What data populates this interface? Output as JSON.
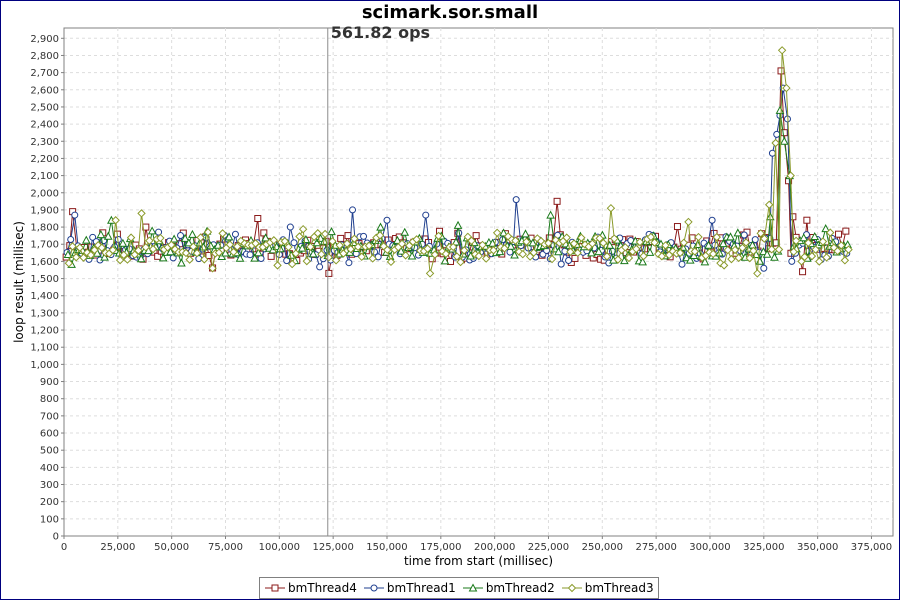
{
  "chart_data": {
    "type": "line",
    "title": "scimark.sor.small",
    "xlabel": "time from start (millisec)",
    "ylabel": "loop result (millisec)",
    "xlim": [
      0,
      385000
    ],
    "ylim": [
      0,
      2960
    ],
    "x_ticks": [
      0,
      25000,
      50000,
      75000,
      100000,
      125000,
      150000,
      175000,
      200000,
      225000,
      250000,
      275000,
      300000,
      325000,
      350000,
      375000
    ],
    "x_tick_labels": [
      "0",
      "25,000",
      "50,000",
      "75,000",
      "100,000",
      "125,000",
      "150,000",
      "175,000",
      "200,000",
      "225,000",
      "250,000",
      "275,000",
      "300,000",
      "325,000",
      "350,000",
      "375,000"
    ],
    "y_ticks": [
      0,
      100,
      200,
      300,
      400,
      500,
      600,
      700,
      800,
      900,
      1000,
      1100,
      1200,
      1300,
      1400,
      1500,
      1600,
      1700,
      1800,
      1900,
      2000,
      2100,
      2200,
      2300,
      2400,
      2500,
      2600,
      2700,
      2800,
      2900
    ],
    "y_tick_labels": [
      "0",
      "100",
      "200",
      "300",
      "400",
      "500",
      "600",
      "700",
      "800",
      "900",
      "1,000",
      "1,100",
      "1,200",
      "1,300",
      "1,400",
      "1,500",
      "1,600",
      "1,700",
      "1,800",
      "1,900",
      "2,000",
      "2,100",
      "2,200",
      "2,300",
      "2,400",
      "2,500",
      "2,600",
      "2,700",
      "2,800",
      "2,900"
    ],
    "grid": true,
    "legend_position": "bottom",
    "marker_line": {
      "x": 122500,
      "label": "561.82 ops"
    },
    "sampling": {
      "x_start": 1000,
      "x_step": 1700,
      "count": 214,
      "baseline": 1680,
      "noise": 75
    },
    "series": [
      {
        "name": "bmThread4",
        "color": "#8b1a1a",
        "marker": "square",
        "seed": 11,
        "spikes": [
          [
            4000,
            1890
          ],
          [
            38000,
            1800
          ],
          [
            90000,
            1850
          ],
          [
            123000,
            1530
          ],
          [
            229000,
            1950
          ],
          [
            333000,
            2710
          ],
          [
            334500,
            2350
          ],
          [
            336500,
            2070
          ],
          [
            338500,
            1860
          ],
          [
            340000,
            1740
          ],
          [
            343000,
            1540
          ],
          [
            345000,
            1840
          ]
        ]
      },
      {
        "name": "bmThread1",
        "color": "#1f3f8f",
        "marker": "circle",
        "seed": 23,
        "spikes": [
          [
            5000,
            1870
          ],
          [
            134000,
            1900
          ],
          [
            150000,
            1840
          ],
          [
            168000,
            1870
          ],
          [
            210000,
            1960
          ],
          [
            301000,
            1840
          ],
          [
            325000,
            1560
          ],
          [
            329000,
            2230
          ],
          [
            331000,
            2340
          ],
          [
            332500,
            2450
          ],
          [
            334000,
            2610
          ],
          [
            336000,
            2430
          ],
          [
            338000,
            1600
          ]
        ]
      },
      {
        "name": "bmThread2",
        "color": "#1a7a1a",
        "marker": "triangle",
        "seed": 37,
        "spikes": [
          [
            22000,
            1840
          ],
          [
            147000,
            1800
          ],
          [
            183000,
            1810
          ],
          [
            226000,
            1870
          ],
          [
            328000,
            1860
          ],
          [
            332500,
            2480
          ],
          [
            334500,
            2300
          ],
          [
            337000,
            2100
          ],
          [
            339000,
            1690
          ]
        ]
      },
      {
        "name": "bmThread3",
        "color": "#8a9a2a",
        "marker": "diamond",
        "seed": 53,
        "spikes": [
          [
            24000,
            1840
          ],
          [
            36000,
            1880
          ],
          [
            69000,
            1560
          ],
          [
            170000,
            1530
          ],
          [
            254000,
            1910
          ],
          [
            290000,
            1830
          ],
          [
            322000,
            1530
          ],
          [
            327500,
            1930
          ],
          [
            330500,
            2290
          ],
          [
            333500,
            2830
          ],
          [
            335500,
            2610
          ],
          [
            337500,
            2100
          ],
          [
            340000,
            1720
          ],
          [
            342500,
            1600
          ]
        ]
      }
    ]
  }
}
